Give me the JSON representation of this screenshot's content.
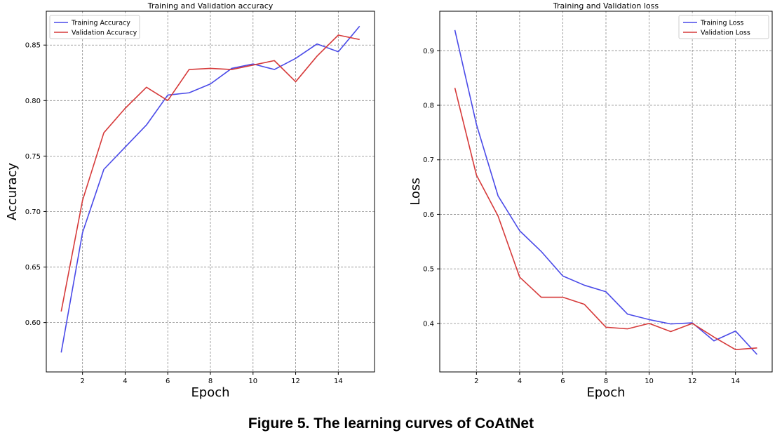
{
  "caption": "Figure 5. The learning curves of CoAtNet",
  "colors": {
    "training": "#4a4ae8",
    "validation": "#d63a3a",
    "grid": "#8a8a8a"
  },
  "chart_data": [
    {
      "type": "line",
      "title": "Training and Validation accuracy",
      "xlabel": "Epoch",
      "ylabel": "Accuracy",
      "x": [
        1,
        2,
        3,
        4,
        5,
        6,
        7,
        8,
        9,
        10,
        11,
        12,
        13,
        14,
        15
      ],
      "xticks": [
        2,
        4,
        6,
        8,
        10,
        12,
        14
      ],
      "xtick_labels": [
        "2",
        "4",
        "6",
        "8",
        "10",
        "12",
        "14"
      ],
      "yticks": [
        0.6,
        0.65,
        0.7,
        0.75,
        0.8,
        0.85
      ],
      "ytick_labels": [
        "0.60",
        "0.65",
        "0.70",
        "0.75",
        "0.80",
        "0.85"
      ],
      "xlim": [
        0.3,
        15.7
      ],
      "ylim": [
        0.5555,
        0.8805
      ],
      "grid": true,
      "legend": "top-left",
      "series": [
        {
          "name": "Training Accuracy",
          "color": "#4a4ae8",
          "values": [
            0.573,
            0.681,
            0.738,
            0.758,
            0.778,
            0.805,
            0.807,
            0.815,
            0.829,
            0.833,
            0.828,
            0.838,
            0.851,
            0.844,
            0.867
          ]
        },
        {
          "name": "Validation Accuracy",
          "color": "#d63a3a",
          "values": [
            0.61,
            0.71,
            0.771,
            0.793,
            0.812,
            0.8,
            0.828,
            0.829,
            0.828,
            0.832,
            0.836,
            0.817,
            0.84,
            0.859,
            0.855
          ]
        }
      ]
    },
    {
      "type": "line",
      "title": "Training and Validation loss",
      "xlabel": "Epoch",
      "ylabel": "Loss",
      "x": [
        1,
        2,
        3,
        4,
        5,
        6,
        7,
        8,
        9,
        10,
        11,
        12,
        13,
        14,
        15
      ],
      "xticks": [
        2,
        4,
        6,
        8,
        10,
        12,
        14
      ],
      "xtick_labels": [
        "2",
        "4",
        "6",
        "8",
        "10",
        "12",
        "14"
      ],
      "yticks": [
        0.4,
        0.5,
        0.6,
        0.7,
        0.8,
        0.9
      ],
      "ytick_labels": [
        "0.4",
        "0.5",
        "0.6",
        "0.7",
        "0.8",
        "0.9"
      ],
      "xlim": [
        0.3,
        15.7
      ],
      "ylim": [
        0.311,
        0.9725
      ],
      "grid": true,
      "legend": "top-right",
      "series": [
        {
          "name": "Training Loss",
          "color": "#4a4ae8",
          "values": [
            0.938,
            0.765,
            0.634,
            0.57,
            0.532,
            0.487,
            0.47,
            0.458,
            0.417,
            0.407,
            0.399,
            0.401,
            0.368,
            0.386,
            0.343
          ]
        },
        {
          "name": "Validation Loss",
          "color": "#d63a3a",
          "values": [
            0.832,
            0.672,
            0.597,
            0.485,
            0.448,
            0.448,
            0.435,
            0.393,
            0.39,
            0.4,
            0.385,
            0.4,
            0.375,
            0.352,
            0.355
          ]
        }
      ]
    }
  ]
}
